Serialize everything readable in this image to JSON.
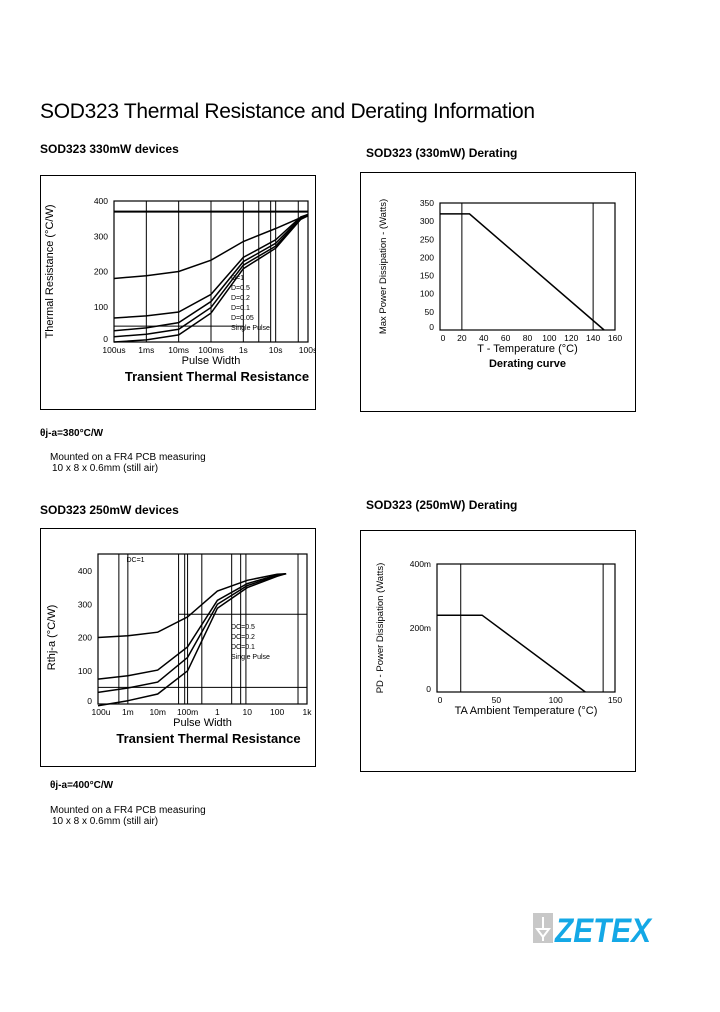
{
  "page": {
    "title": "SOD323 Thermal Resistance and Derating Information",
    "sections": [
      {
        "heading": "SOD323 330mW devices",
        "theta": "θj-a=380°C/W",
        "note1": "Mounted on a FR4 PCB measuring",
        "note2": "10 x 8 x 0.6mm (still air)"
      },
      {
        "heading": "SOD323 (330mW) Derating"
      },
      {
        "heading": "SOD323 250mW devices",
        "theta": "θj-a=400°C/W",
        "note1": "Mounted on a FR4 PCB measuring",
        "note2": "10 x 8 x 0.6mm (still air)"
      },
      {
        "heading": "SOD323 (250mW) Derating"
      }
    ],
    "logo": {
      "text": "ZETEX",
      "color": "#14a8e6"
    }
  },
  "chart_data": [
    {
      "type": "line",
      "title": "Transient Thermal Resistance",
      "xlabel": "Pulse Width",
      "ylabel": "Thermal Resistance (°C/W)",
      "xscale": "log",
      "xlim": [
        0.0001,
        100
      ],
      "ylim": [
        0,
        400
      ],
      "xticks": [
        0.0001,
        0.001,
        0.01,
        0.1,
        1,
        10,
        100
      ],
      "xtick_labels": [
        "100us",
        "1ms",
        "10ms",
        "100ms",
        "1s",
        "10s",
        "100s"
      ],
      "yticks": [
        0,
        100,
        200,
        300,
        400
      ],
      "ytick_labels": [
        "0",
        "100",
        "200",
        "300",
        "400"
      ],
      "legend": [
        "D=1",
        "D=0.5",
        "D=0.2",
        "D=0.1",
        "D=0.05",
        "Single Pulse"
      ],
      "series": [
        {
          "name": "D=1",
          "points": [
            [
              0.0001,
              370
            ],
            [
              100,
              370
            ]
          ]
        },
        {
          "name": "D=0.5",
          "points": [
            [
              0.0001,
              180
            ],
            [
              0.001,
              188
            ],
            [
              0.01,
              200
            ],
            [
              0.1,
              232
            ],
            [
              1,
              285
            ],
            [
              10,
              322
            ],
            [
              100,
              362
            ]
          ]
        },
        {
          "name": "D=0.2",
          "points": [
            [
              0.0001,
              68
            ],
            [
              0.001,
              74
            ],
            [
              0.01,
              85
            ],
            [
              0.1,
              135
            ],
            [
              1,
              240
            ],
            [
              10,
              290
            ],
            [
              60,
              355
            ],
            [
              100,
              362
            ]
          ]
        },
        {
          "name": "D=0.1",
          "points": [
            [
              0.0001,
              32
            ],
            [
              0.001,
              40
            ],
            [
              0.01,
              55
            ],
            [
              0.1,
              115
            ],
            [
              1,
              228
            ],
            [
              10,
              280
            ],
            [
              60,
              352
            ],
            [
              100,
              360
            ]
          ]
        },
        {
          "name": "D=0.05",
          "points": [
            [
              0.0001,
              15
            ],
            [
              0.001,
              22
            ],
            [
              0.01,
              36
            ],
            [
              0.1,
              98
            ],
            [
              1,
              218
            ],
            [
              10,
              272
            ],
            [
              60,
              350
            ],
            [
              100,
              360
            ]
          ]
        },
        {
          "name": "Single Pulse",
          "points": [
            [
              0.0001,
              0
            ],
            [
              0.001,
              6
            ],
            [
              0.01,
              20
            ],
            [
              0.1,
              82
            ],
            [
              1,
              208
            ],
            [
              10,
              266
            ],
            [
              60,
              348
            ],
            [
              100,
              358
            ]
          ]
        }
      ],
      "hlines": [
        370,
        45
      ],
      "vlines": [
        0.001,
        0.01,
        0.1,
        1,
        3,
        7,
        10,
        50
      ]
    },
    {
      "type": "line",
      "title": "Derating curve",
      "xlabel": "T - Temperature (°C)",
      "ylabel": "Max Power Dissipation - (Watts)",
      "xscale": "linear",
      "xlim": [
        0,
        160
      ],
      "ylim": [
        0,
        350
      ],
      "xticks": [
        0,
        20,
        40,
        60,
        80,
        100,
        120,
        140,
        160
      ],
      "xtick_labels": [
        "0",
        "20",
        "40",
        "60",
        "80",
        "100",
        "120",
        "140",
        "160"
      ],
      "yticks": [
        0,
        50,
        100,
        150,
        200,
        250,
        300,
        350
      ],
      "ytick_labels": [
        "0",
        "50",
        "100",
        "150",
        "200",
        "250",
        "300",
        "350"
      ],
      "series": [
        {
          "points": [
            [
              0,
              320
            ],
            [
              27,
              320
            ],
            [
              150,
              0
            ]
          ]
        }
      ],
      "hlines": [],
      "vlines": [
        20,
        140
      ]
    },
    {
      "type": "line",
      "title": "Transient Thermal Resistance",
      "xlabel": "Pulse Width",
      "ylabel": "Rthj-a (°C/W)",
      "xscale": "log",
      "xlim": [
        0.0001,
        1000
      ],
      "ylim": [
        0,
        400
      ],
      "xticks": [
        0.0001,
        0.001,
        0.01,
        0.1,
        1,
        10,
        100,
        1000
      ],
      "xtick_labels": [
        "100u",
        "1m",
        "10m",
        "100m",
        "1",
        "10",
        "100",
        "1k"
      ],
      "yticks": [
        0,
        100,
        200,
        300,
        400
      ],
      "ytick_labels": [
        "0",
        "100",
        "200",
        "300",
        "400"
      ],
      "legend": [
        "DC=1",
        "DC=0.5",
        "DC=0.2",
        "DC=0.1",
        "Single Pulse"
      ],
      "series": [
        {
          "name": "DC=0.5",
          "points": [
            [
              0.0001,
              200
            ],
            [
              0.001,
              205
            ],
            [
              0.01,
              216
            ],
            [
              0.1,
              262
            ],
            [
              1,
              340
            ],
            [
              10,
              372
            ],
            [
              100,
              390
            ],
            [
              200,
              392
            ]
          ]
        },
        {
          "name": "DC=0.2",
          "points": [
            [
              0.0001,
              75
            ],
            [
              0.001,
              85
            ],
            [
              0.01,
              102
            ],
            [
              0.1,
              172
            ],
            [
              1,
              312
            ],
            [
              10,
              362
            ],
            [
              100,
              388
            ],
            [
              200,
              392
            ]
          ]
        },
        {
          "name": "DC=0.1",
          "points": [
            [
              0.0001,
              35
            ],
            [
              0.001,
              48
            ],
            [
              0.01,
              66
            ],
            [
              0.1,
              140
            ],
            [
              1,
              300
            ],
            [
              10,
              356
            ],
            [
              100,
              386
            ],
            [
              200,
              392
            ]
          ]
        },
        {
          "name": "Single Pulse",
          "points": [
            [
              0.0001,
              -5
            ],
            [
              0.001,
              10
            ],
            [
              0.01,
              30
            ],
            [
              0.1,
              100
            ],
            [
              1,
              288
            ],
            [
              10,
              350
            ],
            [
              100,
              384
            ],
            [
              200,
              392
            ]
          ]
        }
      ],
      "hlines": [
        270,
        50
      ],
      "vlines": [
        0.0005,
        0.001,
        0.05,
        0.08,
        0.1,
        0.3,
        3,
        6,
        9,
        500
      ]
    },
    {
      "type": "line",
      "title": "",
      "xlabel": "TA  Ambient Temperature (°C)",
      "ylabel": "PD - Power Dissipation (Watts)",
      "xscale": "linear",
      "xlim": [
        0,
        150
      ],
      "ylim": [
        0,
        0.4
      ],
      "xticks": [
        0,
        50,
        100,
        150
      ],
      "xtick_labels": [
        "0",
        "50",
        "100",
        "150"
      ],
      "yticks": [
        0,
        0.2,
        0.4
      ],
      "ytick_labels": [
        "0",
        "200m",
        "400m"
      ],
      "series": [
        {
          "points": [
            [
              0,
              0.24
            ],
            [
              38,
              0.24
            ],
            [
              125,
              0
            ]
          ]
        }
      ],
      "hlines": [],
      "vlines": [
        20,
        140
      ]
    }
  ]
}
